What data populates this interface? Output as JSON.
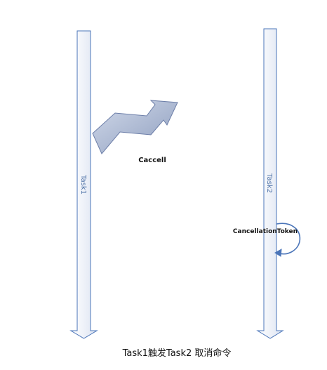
{
  "diagram": {
    "lane_left_label": "Task1",
    "lane_right_label": "Task2",
    "message_label": "Caccell",
    "token_label": "CancellationToken",
    "caption": "Task1触发Task2 取消命令",
    "colors": {
      "lane_stroke": "#4a74b8",
      "lane_fill_light": "#ffffff",
      "lane_fill_dark": "#dde4f2",
      "arrow_stroke": "#6c7ea8",
      "arrow_fill_light": "#d2daea",
      "arrow_fill_dark": "#8d9dbe",
      "loop_stroke": "#4a74b8"
    }
  }
}
